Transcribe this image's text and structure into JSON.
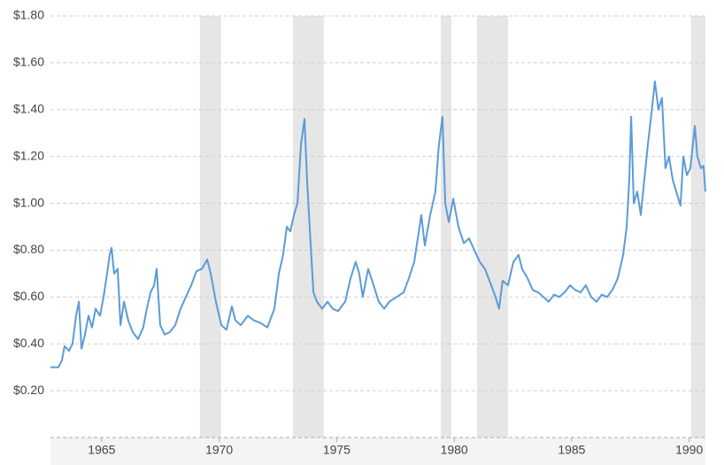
{
  "chart_data": {
    "type": "line",
    "color": "#5b9bd7",
    "shade_color": "#e6e6e6",
    "grid": true,
    "xlim": [
      1962.82,
      1990.69
    ],
    "ylim": [
      0,
      1.8
    ],
    "xticks": [
      1965,
      1970,
      1975,
      1980,
      1985,
      1990
    ],
    "yticks": [
      {
        "value": 0.2,
        "label": "$0.20"
      },
      {
        "value": 0.4,
        "label": "$0.40"
      },
      {
        "value": 0.6,
        "label": "$0.60"
      },
      {
        "value": 0.8,
        "label": "$0.80"
      },
      {
        "value": 1.0,
        "label": "$1.00"
      },
      {
        "value": 1.2,
        "label": "$1.20"
      },
      {
        "value": 1.4,
        "label": "$1.40"
      },
      {
        "value": 1.6,
        "label": "$1.60"
      },
      {
        "value": 1.8,
        "label": "$1.80"
      }
    ],
    "shaded_ranges": [
      [
        1969.18,
        1970.08
      ],
      [
        1973.14,
        1974.45
      ],
      [
        1979.43,
        1979.88
      ],
      [
        1980.97,
        1982.29
      ],
      [
        1990.08,
        1990.69
      ]
    ],
    "x": [
      1962.82,
      1963.16,
      1963.31,
      1963.42,
      1963.61,
      1963.76,
      1963.91,
      1964.03,
      1964.14,
      1964.29,
      1964.44,
      1964.59,
      1964.74,
      1964.93,
      1965.08,
      1965.23,
      1965.34,
      1965.42,
      1965.53,
      1965.68,
      1965.8,
      1965.95,
      1966.13,
      1966.32,
      1966.55,
      1966.77,
      1966.92,
      1967.08,
      1967.23,
      1967.34,
      1967.49,
      1967.68,
      1967.9,
      1968.13,
      1968.36,
      1968.58,
      1968.81,
      1969.03,
      1969.26,
      1969.49,
      1969.64,
      1969.86,
      1970.09,
      1970.31,
      1970.54,
      1970.69,
      1970.92,
      1971.22,
      1971.48,
      1971.75,
      1972.05,
      1972.35,
      1972.54,
      1972.72,
      1972.88,
      1973.03,
      1973.18,
      1973.33,
      1973.48,
      1973.63,
      1973.74,
      1973.85,
      1974.01,
      1974.16,
      1974.38,
      1974.61,
      1974.83,
      1975.06,
      1975.36,
      1975.59,
      1975.81,
      1975.96,
      1976.11,
      1976.34,
      1976.57,
      1976.79,
      1977.02,
      1977.24,
      1977.55,
      1977.85,
      1978.07,
      1978.3,
      1978.45,
      1978.6,
      1978.75,
      1978.98,
      1979.2,
      1979.35,
      1979.5,
      1979.62,
      1979.77,
      1979.96,
      1980.18,
      1980.41,
      1980.63,
      1980.86,
      1981.09,
      1981.31,
      1981.54,
      1981.76,
      1981.91,
      1982.06,
      1982.29,
      1982.52,
      1982.74,
      1982.89,
      1983.12,
      1983.34,
      1983.57,
      1983.8,
      1984.02,
      1984.25,
      1984.47,
      1984.7,
      1984.93,
      1985.15,
      1985.38,
      1985.6,
      1985.83,
      1986.06,
      1986.28,
      1986.51,
      1986.73,
      1986.96,
      1987.19,
      1987.34,
      1987.45,
      1987.53,
      1987.64,
      1987.79,
      1987.94,
      1988.09,
      1988.24,
      1988.39,
      1988.54,
      1988.69,
      1988.84,
      1988.99,
      1989.14,
      1989.3,
      1989.45,
      1989.63,
      1989.75,
      1989.9,
      1990.05,
      1990.24,
      1990.35,
      1990.5,
      1990.61,
      1990.69
    ],
    "values": [
      0.3,
      0.3,
      0.33,
      0.39,
      0.37,
      0.4,
      0.52,
      0.58,
      0.38,
      0.44,
      0.52,
      0.47,
      0.55,
      0.52,
      0.6,
      0.7,
      0.78,
      0.81,
      0.7,
      0.72,
      0.48,
      0.58,
      0.5,
      0.45,
      0.42,
      0.47,
      0.55,
      0.62,
      0.65,
      0.72,
      0.48,
      0.44,
      0.45,
      0.48,
      0.55,
      0.6,
      0.65,
      0.71,
      0.72,
      0.76,
      0.7,
      0.58,
      0.48,
      0.46,
      0.56,
      0.5,
      0.48,
      0.52,
      0.5,
      0.49,
      0.47,
      0.55,
      0.7,
      0.78,
      0.9,
      0.88,
      0.95,
      1.0,
      1.25,
      1.36,
      1.1,
      0.9,
      0.62,
      0.58,
      0.55,
      0.58,
      0.55,
      0.54,
      0.58,
      0.68,
      0.75,
      0.7,
      0.6,
      0.72,
      0.65,
      0.58,
      0.55,
      0.58,
      0.6,
      0.62,
      0.68,
      0.75,
      0.85,
      0.95,
      0.82,
      0.95,
      1.05,
      1.25,
      1.37,
      1.0,
      0.92,
      1.02,
      0.9,
      0.83,
      0.85,
      0.8,
      0.75,
      0.72,
      0.66,
      0.6,
      0.55,
      0.67,
      0.65,
      0.75,
      0.78,
      0.72,
      0.68,
      0.63,
      0.62,
      0.6,
      0.58,
      0.61,
      0.6,
      0.62,
      0.65,
      0.63,
      0.62,
      0.65,
      0.6,
      0.58,
      0.61,
      0.6,
      0.63,
      0.68,
      0.78,
      0.9,
      1.1,
      1.37,
      1.0,
      1.05,
      0.95,
      1.1,
      1.25,
      1.38,
      1.52,
      1.4,
      1.45,
      1.15,
      1.2,
      1.1,
      1.05,
      0.99,
      1.2,
      1.12,
      1.15,
      1.33,
      1.2,
      1.15,
      1.16,
      1.05
    ]
  }
}
